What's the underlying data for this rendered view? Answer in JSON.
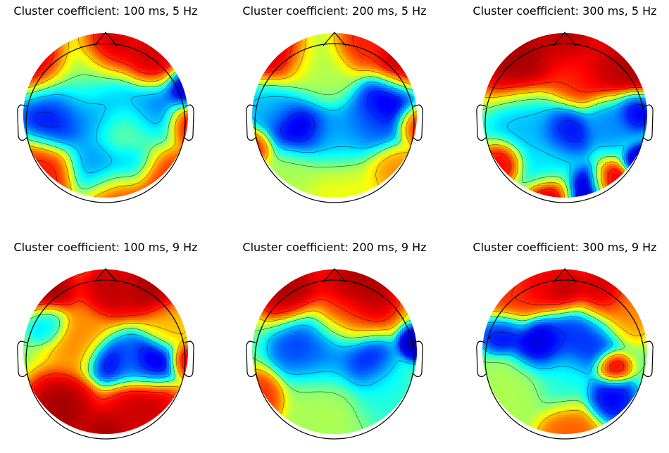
{
  "chart_data": [
    {
      "type": "heatmap",
      "title": "Cluster coefficient: 100 ms, 5 Hz",
      "colormap": "jet",
      "blobs": [
        {
          "x": -0.8,
          "y": 0.62,
          "v": 0.98,
          "s": 0.2
        },
        {
          "x": 0.05,
          "y": 0.8,
          "v": 0.97,
          "s": 0.18
        },
        {
          "x": 0.55,
          "y": 0.65,
          "v": 0.95,
          "s": 0.18
        },
        {
          "x": 0.98,
          "y": -0.1,
          "v": 0.95,
          "s": 0.14
        },
        {
          "x": 0.97,
          "y": 0.32,
          "v": 0.02,
          "s": 0.13
        },
        {
          "x": -0.6,
          "y": 0.05,
          "v": 0.1,
          "s": 0.22
        },
        {
          "x": -0.1,
          "y": 0.12,
          "v": 0.25,
          "s": 0.25
        },
        {
          "x": 0.55,
          "y": 0.02,
          "v": 0.2,
          "s": 0.22
        },
        {
          "x": -0.05,
          "y": -0.62,
          "v": 0.25,
          "s": 0.2
        },
        {
          "x": 0.35,
          "y": -0.55,
          "v": 0.25,
          "s": 0.14
        },
        {
          "x": -0.8,
          "y": -0.75,
          "v": 0.88,
          "s": 0.22
        },
        {
          "x": 0.7,
          "y": -0.75,
          "v": 0.85,
          "s": 0.22
        },
        {
          "x": 0.1,
          "y": -1.0,
          "v": 0.85,
          "s": 0.18
        },
        {
          "x": -0.3,
          "y": 0.45,
          "v": 0.55,
          "s": 0.25
        },
        {
          "x": 0.3,
          "y": -0.2,
          "v": 0.55,
          "s": 0.22
        }
      ]
    },
    {
      "type": "heatmap",
      "title": "Cluster coefficient: 200 ms, 5 Hz",
      "colormap": "jet",
      "blobs": [
        {
          "x": -0.7,
          "y": 0.75,
          "v": 0.97,
          "s": 0.2
        },
        {
          "x": 0.28,
          "y": 0.85,
          "v": 0.88,
          "s": 0.16
        },
        {
          "x": 0.82,
          "y": 0.62,
          "v": 0.97,
          "s": 0.18
        },
        {
          "x": 0.98,
          "y": -0.1,
          "v": 0.9,
          "s": 0.12
        },
        {
          "x": -0.98,
          "y": -0.4,
          "v": 0.9,
          "s": 0.12
        },
        {
          "x": -0.45,
          "y": -0.15,
          "v": 0.05,
          "s": 0.2
        },
        {
          "x": 0.65,
          "y": 0.15,
          "v": 0.05,
          "s": 0.18
        },
        {
          "x": 0.05,
          "y": -0.3,
          "v": 0.28,
          "s": 0.22
        },
        {
          "x": 0.45,
          "y": -0.1,
          "v": 0.2,
          "s": 0.2
        },
        {
          "x": -0.75,
          "y": 0.1,
          "v": 0.3,
          "s": 0.18
        },
        {
          "x": -0.2,
          "y": 0.55,
          "v": 0.55,
          "s": 0.25
        },
        {
          "x": 0.1,
          "y": -0.85,
          "v": 0.62,
          "s": 0.25
        },
        {
          "x": -0.55,
          "y": -0.7,
          "v": 0.55,
          "s": 0.2
        },
        {
          "x": 0.7,
          "y": -0.65,
          "v": 0.75,
          "s": 0.16
        }
      ]
    },
    {
      "type": "heatmap",
      "title": "Cluster coefficient: 300 ms, 5 Hz",
      "colormap": "jet",
      "blobs": [
        {
          "x": -0.55,
          "y": 0.65,
          "v": 0.99,
          "s": 0.25
        },
        {
          "x": 0.05,
          "y": 0.9,
          "v": 0.97,
          "s": 0.18
        },
        {
          "x": 0.5,
          "y": 0.55,
          "v": 0.96,
          "s": 0.2
        },
        {
          "x": 0.85,
          "y": 0.6,
          "v": 0.98,
          "s": 0.18
        },
        {
          "x": 0.15,
          "y": 0.5,
          "v": 0.85,
          "s": 0.2
        },
        {
          "x": -0.45,
          "y": -0.1,
          "v": 0.3,
          "s": 0.22
        },
        {
          "x": 0.0,
          "y": -0.2,
          "v": 0.1,
          "s": 0.16
        },
        {
          "x": 0.55,
          "y": -0.05,
          "v": 0.25,
          "s": 0.16
        },
        {
          "x": 0.85,
          "y": 0.05,
          "v": 0.08,
          "s": 0.12
        },
        {
          "x": 0.95,
          "y": -0.55,
          "v": 0.05,
          "s": 0.1
        },
        {
          "x": 0.25,
          "y": -0.95,
          "v": 0.02,
          "s": 0.15
        },
        {
          "x": 0.55,
          "y": -0.85,
          "v": 0.95,
          "s": 0.12
        },
        {
          "x": -0.15,
          "y": -1.0,
          "v": 0.98,
          "s": 0.14
        },
        {
          "x": -0.75,
          "y": -0.55,
          "v": 0.92,
          "s": 0.12
        },
        {
          "x": -0.2,
          "y": -0.55,
          "v": 0.35,
          "s": 0.18
        }
      ]
    },
    {
      "type": "heatmap",
      "title": "Cluster coefficient: 100 ms, 9 Hz",
      "colormap": "jet",
      "blobs": [
        {
          "x": -0.7,
          "y": 0.75,
          "v": 0.99,
          "s": 0.18
        },
        {
          "x": 0.05,
          "y": 0.75,
          "v": 0.96,
          "s": 0.18
        },
        {
          "x": 0.55,
          "y": 0.75,
          "v": 0.98,
          "s": 0.18
        },
        {
          "x": -0.7,
          "y": 0.35,
          "v": 0.3,
          "s": 0.12
        },
        {
          "x": 0.05,
          "y": -0.1,
          "v": 0.05,
          "s": 0.14
        },
        {
          "x": 0.55,
          "y": -0.1,
          "v": 0.03,
          "s": 0.16
        },
        {
          "x": 0.3,
          "y": -0.1,
          "v": 0.25,
          "s": 0.15
        },
        {
          "x": -0.55,
          "y": -0.7,
          "v": 0.99,
          "s": 0.22
        },
        {
          "x": 0.45,
          "y": -0.7,
          "v": 0.95,
          "s": 0.22
        },
        {
          "x": 0.0,
          "y": -1.0,
          "v": 0.98,
          "s": 0.16
        },
        {
          "x": 0.98,
          "y": -0.1,
          "v": 0.92,
          "s": 0.1
        },
        {
          "x": -0.3,
          "y": 0.15,
          "v": 0.75,
          "s": 0.2
        },
        {
          "x": 0.75,
          "y": 0.3,
          "v": 0.7,
          "s": 0.16
        }
      ]
    },
    {
      "type": "heatmap",
      "title": "Cluster coefficient: 200 ms, 9 Hz",
      "colormap": "jet",
      "blobs": [
        {
          "x": -0.55,
          "y": 0.75,
          "v": 0.98,
          "s": 0.2
        },
        {
          "x": 0.3,
          "y": 0.75,
          "v": 0.99,
          "s": 0.25
        },
        {
          "x": -0.3,
          "y": 0.05,
          "v": 0.15,
          "s": 0.22
        },
        {
          "x": 0.35,
          "y": -0.15,
          "v": 0.08,
          "s": 0.18
        },
        {
          "x": 0.98,
          "y": 0.1,
          "v": 0.02,
          "s": 0.1
        },
        {
          "x": -0.05,
          "y": -0.05,
          "v": 0.25,
          "s": 0.22
        },
        {
          "x": -0.1,
          "y": -0.55,
          "v": 0.55,
          "s": 0.25
        },
        {
          "x": 0.55,
          "y": -0.45,
          "v": 0.4,
          "s": 0.2
        },
        {
          "x": -0.9,
          "y": -0.55,
          "v": 0.85,
          "s": 0.15
        },
        {
          "x": 0.1,
          "y": 0.4,
          "v": 0.8,
          "s": 0.2
        }
      ]
    },
    {
      "type": "heatmap",
      "title": "Cluster coefficient: 300 ms, 9 Hz",
      "colormap": "jet",
      "blobs": [
        {
          "x": -0.3,
          "y": 0.8,
          "v": 0.9,
          "s": 0.16
        },
        {
          "x": 0.0,
          "y": 0.75,
          "v": 0.97,
          "s": 0.14
        },
        {
          "x": 0.45,
          "y": 0.7,
          "v": 0.96,
          "s": 0.18
        },
        {
          "x": -0.7,
          "y": 0.6,
          "v": 0.85,
          "s": 0.16
        },
        {
          "x": -0.3,
          "y": 0.05,
          "v": 0.05,
          "s": 0.16
        },
        {
          "x": -0.75,
          "y": 0.25,
          "v": 0.1,
          "s": 0.13
        },
        {
          "x": 0.2,
          "y": 0.15,
          "v": 0.15,
          "s": 0.22
        },
        {
          "x": 0.55,
          "y": -0.55,
          "v": 0.1,
          "s": 0.14
        },
        {
          "x": 0.58,
          "y": -0.2,
          "v": 0.95,
          "s": 0.1
        },
        {
          "x": 0.05,
          "y": -0.95,
          "v": 0.8,
          "s": 0.18
        },
        {
          "x": -0.55,
          "y": -0.45,
          "v": 0.55,
          "s": 0.2
        },
        {
          "x": 0.75,
          "y": 0.5,
          "v": 0.75,
          "s": 0.18
        },
        {
          "x": -0.05,
          "y": -0.35,
          "v": 0.4,
          "s": 0.2
        }
      ]
    }
  ]
}
